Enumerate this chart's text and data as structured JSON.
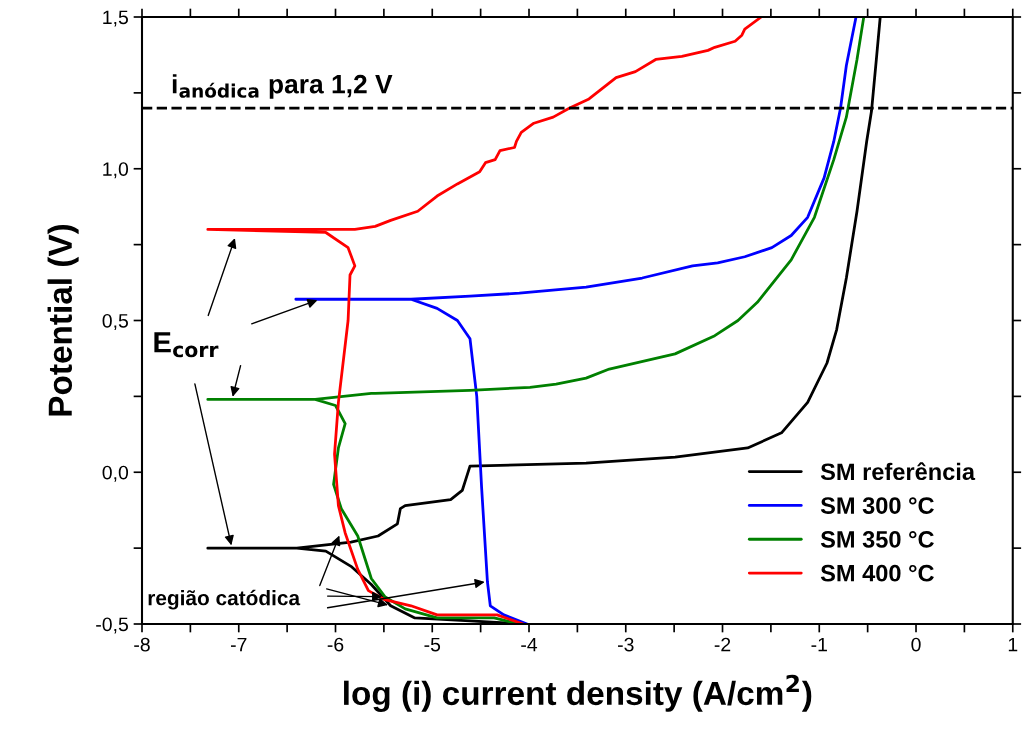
{
  "chart_data": {
    "type": "line",
    "xlabel": "log (i) current density (A/cm$^{2}$)",
    "ylabel": "Potential (V)",
    "xlim": [
      -8,
      1
    ],
    "xticks": [
      -8,
      {
        "value": -7.5,
        "label": null
      },
      -7,
      {
        "value": -6.5,
        "label": null
      },
      -6,
      {
        "value": -5.5,
        "label": null
      },
      -5,
      {
        "value": -4.5,
        "label": null
      },
      -4,
      {
        "value": -3.5,
        "label": null
      },
      -3,
      {
        "value": -2.5,
        "label": null
      },
      -2,
      {
        "value": -1.5,
        "label": null
      },
      -1,
      {
        "value": -0.5,
        "label": null
      },
      0,
      {
        "value": 0.5,
        "label": null
      },
      1
    ],
    "ylim": [
      -0.5,
      1.5
    ],
    "yticks": [
      {
        "value": -0.5,
        "label": "-0,5"
      },
      {
        "value": -0.25,
        "label": null
      },
      {
        "value": 0,
        "label": "0,0"
      },
      {
        "value": 0.25,
        "label": null
      },
      {
        "value": 0.5,
        "label": "0,5"
      },
      {
        "value": 0.75,
        "label": null
      },
      {
        "value": 1.0,
        "label": "1,0"
      },
      {
        "value": 1.25,
        "label": null
      },
      {
        "value": 1.5,
        "label": "1,5"
      }
    ],
    "grid": false,
    "legend": "lower right",
    "marker": "none",
    "line_style": "solid",
    "ref_lines": [
      {
        "axis": "y",
        "value": 1.2,
        "label": "i$_{anódica}$ para 1,2 V",
        "color": "#000000",
        "line_style": "dashed"
      }
    ],
    "annotations": [
      {
        "text": "E$_{corr}$",
        "x": -7.03,
        "y": 0.78
      },
      {
        "text": "região catódica",
        "x": -5.95,
        "y": -0.2
      }
    ],
    "series": [
      {
        "name": "SM referência",
        "color": "#000000",
        "x": [
          -4.06,
          -4.61,
          -5.18,
          -5.43,
          -5.63,
          -5.84,
          -6.1,
          -6.4,
          -7.32,
          -6.4,
          -5.84,
          -5.56,
          -5.36,
          -5.33,
          -5.28,
          -4.81,
          -4.69,
          -4.66,
          -4.61,
          -3.41,
          -2.49,
          -1.74,
          -1.39,
          -1.12,
          -0.92,
          -0.82,
          -0.72,
          -0.61,
          -0.51,
          -0.46,
          -0.41,
          -0.37
        ],
        "values": [
          -0.5,
          -0.49,
          -0.48,
          -0.44,
          -0.37,
          -0.31,
          -0.26,
          -0.25,
          -0.25,
          -0.25,
          -0.23,
          -0.21,
          -0.17,
          -0.12,
          -0.11,
          -0.09,
          -0.06,
          -0.03,
          0.02,
          0.03,
          0.05,
          0.08,
          0.13,
          0.23,
          0.36,
          0.47,
          0.64,
          0.86,
          1.09,
          1.19,
          1.36,
          1.5
        ]
      },
      {
        "name": "SM 300 °C",
        "color": "#0000ff",
        "x": [
          -4.02,
          -4.26,
          -4.4,
          -4.43,
          -4.49,
          -4.54,
          -4.61,
          -4.74,
          -4.95,
          -5.22,
          -6.41,
          -5.22,
          -4.61,
          -4.1,
          -3.41,
          -2.83,
          -2.31,
          -2.05,
          -1.77,
          -1.49,
          -1.29,
          -1.12,
          -0.95,
          -0.85,
          -0.78,
          -0.72,
          -0.62
        ],
        "values": [
          -0.5,
          -0.47,
          -0.44,
          -0.36,
          -0.05,
          0.25,
          0.44,
          0.5,
          0.54,
          0.57,
          0.57,
          0.57,
          0.58,
          0.59,
          0.61,
          0.64,
          0.68,
          0.69,
          0.71,
          0.74,
          0.78,
          0.84,
          0.97,
          1.09,
          1.2,
          1.34,
          1.5
        ]
      },
      {
        "name": "SM 350 °C",
        "color": "#008000",
        "x": [
          -4.1,
          -4.36,
          -4.95,
          -5.28,
          -5.49,
          -5.63,
          -5.77,
          -5.94,
          -6.02,
          -5.97,
          -5.9,
          -6.0,
          -6.21,
          -7.32,
          -6.21,
          -5.63,
          -5.59,
          -4.61,
          -3.99,
          -3.72,
          -3.41,
          -3.17,
          -2.49,
          -2.08,
          -1.84,
          -1.64,
          -1.29,
          -1.05,
          -0.85,
          -0.72,
          -0.61,
          -0.54
        ],
        "values": [
          -0.5,
          -0.48,
          -0.48,
          -0.45,
          -0.41,
          -0.35,
          -0.21,
          -0.12,
          -0.04,
          0.08,
          0.16,
          0.22,
          0.24,
          0.24,
          0.24,
          0.26,
          0.26,
          0.27,
          0.28,
          0.29,
          0.31,
          0.34,
          0.39,
          0.45,
          0.5,
          0.56,
          0.7,
          0.84,
          1.03,
          1.17,
          1.36,
          1.5
        ]
      },
      {
        "name": "SM 400 °C",
        "color": "#ff0000",
        "x": [
          -4.06,
          -4.33,
          -4.95,
          -5.22,
          -5.49,
          -5.66,
          -5.77,
          -5.9,
          -5.97,
          -6.01,
          -5.97,
          -5.87,
          -5.85,
          -5.8,
          -5.87,
          -6.1,
          -7.32,
          -6.1,
          -5.8,
          -5.59,
          -5.43,
          -5.15,
          -4.95,
          -4.74,
          -4.51,
          -4.45,
          -4.35,
          -4.3,
          -4.15,
          -4.13,
          -4.08,
          -3.95,
          -3.75,
          -3.58,
          -3.38,
          -3.1,
          -2.9,
          -2.69,
          -2.42,
          -2.15,
          -2.08,
          -1.87,
          -1.8,
          -1.77,
          -1.6
        ],
        "values": [
          -0.5,
          -0.47,
          -0.47,
          -0.44,
          -0.42,
          -0.39,
          -0.32,
          -0.2,
          -0.11,
          0.06,
          0.23,
          0.5,
          0.65,
          0.68,
          0.74,
          0.79,
          0.8,
          0.8,
          0.8,
          0.81,
          0.83,
          0.86,
          0.91,
          0.95,
          0.99,
          1.02,
          1.03,
          1.06,
          1.07,
          1.09,
          1.12,
          1.15,
          1.17,
          1.2,
          1.23,
          1.3,
          1.32,
          1.36,
          1.37,
          1.39,
          1.4,
          1.42,
          1.44,
          1.46,
          1.5
        ]
      }
    ]
  }
}
